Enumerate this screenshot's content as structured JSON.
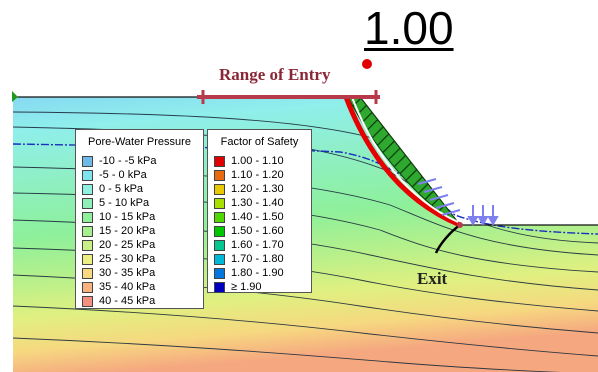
{
  "factor_of_safety": "1.00",
  "labels": {
    "range_of_entry": "Range of Entry",
    "exit": "Exit"
  },
  "legends": {
    "pore_water_pressure": {
      "title": "Pore-Water Pressure",
      "items": [
        {
          "label": "-10 - -5 kPa",
          "color": "#6fb9e8"
        },
        {
          "label": "-5 - 0 kPa",
          "color": "#7fe3ee"
        },
        {
          "label": "0 - 5 kPa",
          "color": "#8ff2e0"
        },
        {
          "label": "5 - 10 kPa",
          "color": "#8cf0b8"
        },
        {
          "label": "10 - 15 kPa",
          "color": "#8ef09a"
        },
        {
          "label": "15 - 20 kPa",
          "color": "#a6f090"
        },
        {
          "label": "20 - 25 kPa",
          "color": "#c9f086"
        },
        {
          "label": "25 - 30 kPa",
          "color": "#ecf080"
        },
        {
          "label": "30 - 35 kPa",
          "color": "#f8d880"
        },
        {
          "label": "35 - 40 kPa",
          "color": "#f8b27e"
        },
        {
          "label": "40 - 45 kPa",
          "color": "#f59080"
        }
      ]
    },
    "factor_of_safety": {
      "title": "Factor of Safety",
      "items": [
        {
          "label": "1.00 - 1.10",
          "color": "#e00000"
        },
        {
          "label": "1.10 - 1.20",
          "color": "#e86a10"
        },
        {
          "label": "1.20 - 1.30",
          "color": "#e8c800"
        },
        {
          "label": "1.30 - 1.40",
          "color": "#a8e000"
        },
        {
          "label": "1.40 - 1.50",
          "color": "#50d800"
        },
        {
          "label": "1.50 - 1.60",
          "color": "#00c800"
        },
        {
          "label": "1.60 - 1.70",
          "color": "#00c890"
        },
        {
          "label": "1.70 - 1.80",
          "color": "#00b8d8"
        },
        {
          "label": "1.80 - 1.90",
          "color": "#0078e0"
        },
        {
          "label": "≥ 1.90",
          "color": "#0000c0"
        }
      ]
    }
  },
  "colors": {
    "entry_range": "#b83a4a",
    "slip_surface": "#e60000",
    "sliding_mass": "#2fa82f",
    "water_table": "#1a2fbf",
    "seepage_arrows": "#7f80f0",
    "critical_center": "#e00000"
  }
}
